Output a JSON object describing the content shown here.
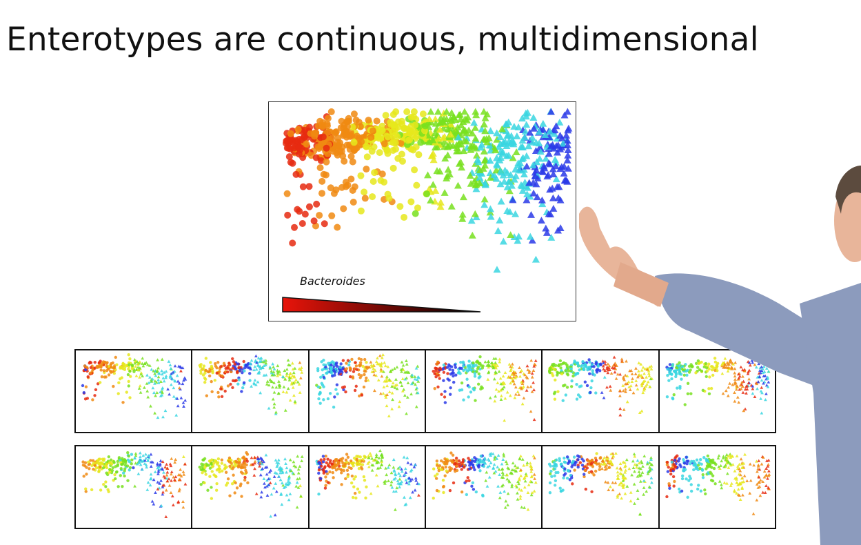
{
  "slide": {
    "title": "Enterotypes are continuous, multidimensional"
  },
  "main_plot": {
    "legend_label": "Bacteroides",
    "gradient": [
      "#e8140a",
      "#000000"
    ]
  },
  "thumbnails": {
    "rows": 2,
    "cols": 6
  },
  "colors": {
    "red": "#e62a10",
    "orange": "#f08a12",
    "yellow": "#e6e81c",
    "green": "#78e01e",
    "cyan": "#3ad6e0",
    "blue": "#2a3ae8"
  },
  "presenter": {
    "shirt": "#8c9bbd",
    "skin": "#e8b59a"
  }
}
